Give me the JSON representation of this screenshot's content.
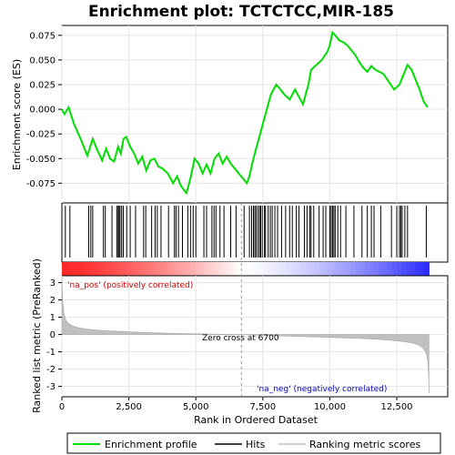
{
  "chart_data": {
    "type": "line",
    "title": "Enrichment plot: TCTCTCC,MIR-185",
    "xlabel": "Rank in Ordered Dataset",
    "ylabel_top": "Enrichment score (ES)",
    "ylabel_bottom": "Ranked list metric (PreRanked)",
    "xlim": [
      0,
      14400
    ],
    "x_ticks": [
      "0",
      "2,500",
      "5,000",
      "7,500",
      "10,000",
      "12,500"
    ],
    "x_tick_values": [
      0,
      2500,
      5000,
      7500,
      10000,
      12500
    ],
    "es_ylim": [
      -0.095,
      0.085
    ],
    "es_y_ticks": [
      "0.075",
      "0.050",
      "0.025",
      "0.000",
      "-0.025",
      "-0.050",
      "-0.075"
    ],
    "es_y_tick_values": [
      0.075,
      0.05,
      0.025,
      0.0,
      -0.025,
      -0.05,
      -0.075
    ],
    "metric_ylim": [
      -3.6,
      3.4
    ],
    "metric_y_ticks": [
      "3",
      "2",
      "1",
      "0",
      "-1",
      "-2",
      "-3"
    ],
    "metric_y_tick_values": [
      3,
      2,
      1,
      0,
      -1,
      -2,
      -3
    ],
    "series": [
      {
        "name": "Enrichment profile",
        "color": "#00dd00",
        "x": [
          0,
          100,
          250,
          450,
          700,
          950,
          1150,
          1300,
          1500,
          1650,
          1800,
          1950,
          2100,
          2200,
          2300,
          2400,
          2550,
          2700,
          2850,
          3000,
          3150,
          3300,
          3450,
          3600,
          3750,
          3950,
          4150,
          4300,
          4450,
          4650,
          4800,
          4950,
          5100,
          5250,
          5400,
          5550,
          5700,
          5850,
          6000,
          6150,
          6300,
          6450,
          6600,
          6750,
          6900,
          7000,
          7100,
          7200,
          7300,
          7400,
          7500,
          7600,
          7700,
          7800,
          7900,
          8000,
          8100,
          8300,
          8500,
          8700,
          8800,
          8900,
          9000,
          9100,
          9200,
          9300,
          9500,
          9700,
          9900,
          10000,
          10100,
          10200,
          10350,
          10500,
          10650,
          10800,
          10950,
          11100,
          11250,
          11400,
          11550,
          11700,
          11850,
          12000,
          12200,
          12400,
          12600,
          12750,
          12900,
          13050,
          13200,
          13350,
          13500,
          13650
        ],
        "y": [
          0.0,
          -0.005,
          0.002,
          -0.015,
          -0.03,
          -0.047,
          -0.03,
          -0.04,
          -0.052,
          -0.04,
          -0.05,
          -0.053,
          -0.038,
          -0.045,
          -0.03,
          -0.028,
          -0.038,
          -0.045,
          -0.055,
          -0.048,
          -0.062,
          -0.052,
          -0.05,
          -0.058,
          -0.06,
          -0.065,
          -0.075,
          -0.068,
          -0.078,
          -0.085,
          -0.07,
          -0.05,
          -0.055,
          -0.065,
          -0.056,
          -0.065,
          -0.05,
          -0.045,
          -0.055,
          -0.048,
          -0.055,
          -0.06,
          -0.065,
          -0.07,
          -0.075,
          -0.068,
          -0.055,
          -0.045,
          -0.035,
          -0.025,
          -0.015,
          -0.005,
          0.005,
          0.015,
          0.02,
          0.025,
          0.022,
          0.015,
          0.01,
          0.02,
          0.015,
          0.01,
          0.005,
          0.015,
          0.025,
          0.04,
          0.045,
          0.05,
          0.058,
          0.065,
          0.078,
          0.075,
          0.07,
          0.068,
          0.065,
          0.06,
          0.055,
          0.048,
          0.042,
          0.038,
          0.044,
          0.04,
          0.038,
          0.036,
          0.028,
          0.02,
          0.025,
          0.035,
          0.045,
          0.04,
          0.03,
          0.02,
          0.008,
          0.002
        ]
      },
      {
        "name": "Hits",
        "color": "#000000",
        "x": [
          130,
          300,
          1000,
          1080,
          1150,
          1550,
          1620,
          1870,
          2050,
          2100,
          2130,
          2170,
          2230,
          2290,
          2420,
          2550,
          2750,
          3050,
          3130,
          3350,
          3480,
          3560,
          3700,
          3980,
          4200,
          4260,
          4350,
          4500,
          4700,
          4800,
          4900,
          5000,
          5300,
          5400,
          5600,
          5680,
          5750,
          5900,
          6050,
          6300,
          6500,
          6800,
          7000,
          7080,
          7150,
          7200,
          7250,
          7320,
          7380,
          7420,
          7480,
          7560,
          7600,
          7700,
          7780,
          7850,
          7950,
          8050,
          8200,
          8350,
          8500,
          8600,
          8750,
          8850,
          9050,
          9150,
          9250,
          9300,
          9400,
          9600,
          9750,
          9850,
          10000,
          10050,
          10100,
          10150,
          10200,
          10300,
          10400,
          10600,
          10900,
          11200,
          11400,
          11550,
          11650,
          11900,
          12300,
          12500,
          12600,
          12650,
          12700,
          12800,
          12900,
          13600
        ]
      },
      {
        "name": "Ranking metric scores",
        "color": "#c0c0c0",
        "x": [
          0,
          30,
          80,
          150,
          250,
          400,
          600,
          900,
          1300,
          1800,
          2500,
          3500,
          4500,
          5500,
          6700,
          8000,
          9000,
          10000,
          11000,
          11800,
          12400,
          12800,
          13100,
          13300,
          13450,
          13550,
          13620,
          13660,
          13690,
          13700
        ],
        "y": [
          3.3,
          1.9,
          1.2,
          0.85,
          0.65,
          0.5,
          0.4,
          0.32,
          0.26,
          0.21,
          0.16,
          0.1,
          0.06,
          0.03,
          0.0,
          -0.08,
          -0.12,
          -0.17,
          -0.22,
          -0.28,
          -0.35,
          -0.42,
          -0.5,
          -0.6,
          -0.75,
          -0.95,
          -1.2,
          -1.6,
          -2.6,
          -3.4
        ]
      }
    ],
    "zero_cross": 6700,
    "annotations": {
      "pos_label": "'na_pos' (positively correlated)",
      "neg_label": "'na_neg' (negatively correlated)",
      "zero_cross_label": "Zero cross at 6700"
    },
    "legend": [
      "Enrichment profile",
      "Hits",
      "Ranking metric scores"
    ],
    "legend_placement": "bottom",
    "grid": true
  }
}
